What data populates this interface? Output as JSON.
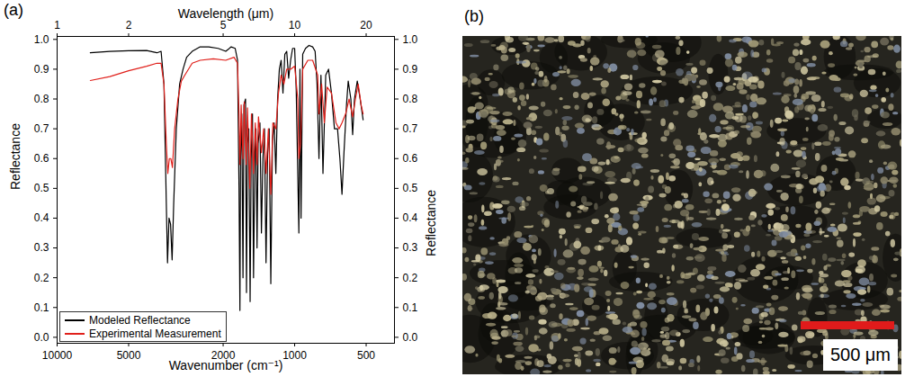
{
  "chart_data": {
    "type": "line",
    "title": "(a)",
    "xlabel": "Wavenumber (cm⁻¹)",
    "ylabel": "Reflectance",
    "y2label": "Reflectance",
    "log": "x",
    "xlim": [
      10000,
      380
    ],
    "xticks": [
      10000,
      5000,
      2000,
      1000,
      500
    ],
    "ylim": [
      -0.02,
      1.01
    ],
    "yticks": [
      {
        "value": 0,
        "label": "0.0"
      },
      {
        "value": 0.1,
        "label": "0.1"
      },
      {
        "value": 0.2,
        "label": "0.2"
      },
      {
        "value": 0.3,
        "label": "0.3"
      },
      {
        "value": 0.4,
        "label": "0.4"
      },
      {
        "value": 0.5,
        "label": "0.5"
      },
      {
        "value": 0.6,
        "label": "0.6"
      },
      {
        "value": 0.7,
        "label": "0.7"
      },
      {
        "value": 0.8,
        "label": "0.8"
      },
      {
        "value": 0.9,
        "label": "0.9"
      },
      {
        "value": 1,
        "label": "1.0"
      }
    ],
    "y2ticks": [
      {
        "value": 0,
        "label": "0.0"
      },
      {
        "value": 0.1,
        "label": "0.1"
      },
      {
        "value": 0.2,
        "label": "0.2"
      },
      {
        "value": 0.3,
        "label": "0.3"
      },
      {
        "value": 0.4,
        "label": "0.4"
      },
      {
        "value": 0.5,
        "label": "0.5"
      },
      {
        "value": 0.6,
        "label": "0.6"
      },
      {
        "value": 0.7,
        "label": "0.7"
      },
      {
        "value": 0.8,
        "label": "0.8"
      },
      {
        "value": 0.9,
        "label": "0.9"
      },
      {
        "value": 1,
        "label": "1.0"
      }
    ],
    "top_axis": {
      "label": "Wavelength (μm)",
      "ticks": [
        {
          "value": 10000,
          "label": "1"
        },
        {
          "value": 5000,
          "label": "2"
        },
        {
          "value": 2000,
          "label": "5"
        },
        {
          "value": 1000,
          "label": "10"
        },
        {
          "value": 500,
          "label": "20"
        }
      ]
    },
    "legend": "lower left",
    "series": [
      {
        "name": "Modeled Reflectance",
        "color": "#000000",
        "x": [
          7250,
          6000,
          5000,
          4200,
          3800,
          3650,
          3550,
          3470,
          3430,
          3380,
          3330,
          3280,
          3230,
          3150,
          3050,
          2950,
          2850,
          2700,
          2500,
          2300,
          2100,
          1950,
          1850,
          1780,
          1740,
          1715,
          1700,
          1690,
          1670,
          1650,
          1635,
          1610,
          1595,
          1580,
          1560,
          1540,
          1525,
          1505,
          1490,
          1470,
          1455,
          1440,
          1425,
          1400,
          1380,
          1360,
          1340,
          1320,
          1300,
          1280,
          1260,
          1240,
          1220,
          1200,
          1180,
          1160,
          1140,
          1120,
          1100,
          1080,
          1060,
          1040,
          1020,
          1000,
          985,
          960,
          950,
          940,
          925,
          900,
          870,
          840,
          820,
          805,
          790,
          775,
          760,
          740,
          720,
          700,
          680,
          660,
          645,
          632,
          620,
          605,
          595,
          580,
          570,
          560,
          545,
          530,
          515
        ],
        "values": [
          0.955,
          0.96,
          0.962,
          0.963,
          0.955,
          0.96,
          0.85,
          0.45,
          0.25,
          0.4,
          0.38,
          0.26,
          0.45,
          0.7,
          0.85,
          0.9,
          0.94,
          0.96,
          0.975,
          0.975,
          0.97,
          0.96,
          0.975,
          0.97,
          0.93,
          0.5,
          0.09,
          0.6,
          0.75,
          0.2,
          0.78,
          0.8,
          0.15,
          0.65,
          0.7,
          0.12,
          0.6,
          0.75,
          0.2,
          0.62,
          0.7,
          0.3,
          0.65,
          0.72,
          0.35,
          0.6,
          0.7,
          0.25,
          0.62,
          0.7,
          0.18,
          0.66,
          0.72,
          0.55,
          0.8,
          0.9,
          0.93,
          0.82,
          0.95,
          0.96,
          0.87,
          0.93,
          0.97,
          0.97,
          0.83,
          0.35,
          0.9,
          0.4,
          0.95,
          0.97,
          0.98,
          0.975,
          0.96,
          0.85,
          0.6,
          0.88,
          0.55,
          0.88,
          0.9,
          0.82,
          0.7,
          0.7,
          0.6,
          0.48,
          0.62,
          0.78,
          0.86,
          0.8,
          0.68,
          0.8,
          0.86,
          0.8,
          0.73
        ]
      },
      {
        "name": "Experimental Measurement",
        "color": "#e0201b",
        "x": [
          7250,
          6000,
          5000,
          4200,
          3800,
          3650,
          3550,
          3470,
          3420,
          3370,
          3320,
          3270,
          3200,
          3100,
          3000,
          2900,
          2700,
          2500,
          2200,
          1950,
          1800,
          1740,
          1715,
          1700,
          1680,
          1650,
          1630,
          1600,
          1580,
          1545,
          1520,
          1490,
          1465,
          1440,
          1420,
          1380,
          1350,
          1320,
          1290,
          1260,
          1235,
          1200,
          1170,
          1140,
          1110,
          1080,
          1040,
          1000,
          970,
          960,
          945,
          925,
          880,
          840,
          800,
          790,
          770,
          750,
          730,
          700,
          670,
          650,
          632,
          610,
          590,
          570,
          555,
          540,
          525,
          515
        ],
        "values": [
          0.862,
          0.875,
          0.895,
          0.91,
          0.92,
          0.92,
          0.85,
          0.65,
          0.55,
          0.6,
          0.6,
          0.57,
          0.7,
          0.8,
          0.86,
          0.88,
          0.92,
          0.93,
          0.935,
          0.93,
          0.94,
          0.92,
          0.75,
          0.58,
          0.78,
          0.6,
          0.79,
          0.58,
          0.77,
          0.5,
          0.75,
          0.55,
          0.72,
          0.58,
          0.74,
          0.62,
          0.7,
          0.55,
          0.7,
          0.48,
          0.72,
          0.7,
          0.82,
          0.88,
          0.85,
          0.9,
          0.9,
          0.91,
          0.8,
          0.6,
          0.65,
          0.9,
          0.93,
          0.93,
          0.88,
          0.75,
          0.85,
          0.72,
          0.84,
          0.82,
          0.72,
          0.7,
          0.72,
          0.75,
          0.8,
          0.74,
          0.8,
          0.85,
          0.78,
          0.75
        ]
      }
    ]
  },
  "image_panel": {
    "label": "(b)",
    "scale_bar": "500 μm"
  }
}
